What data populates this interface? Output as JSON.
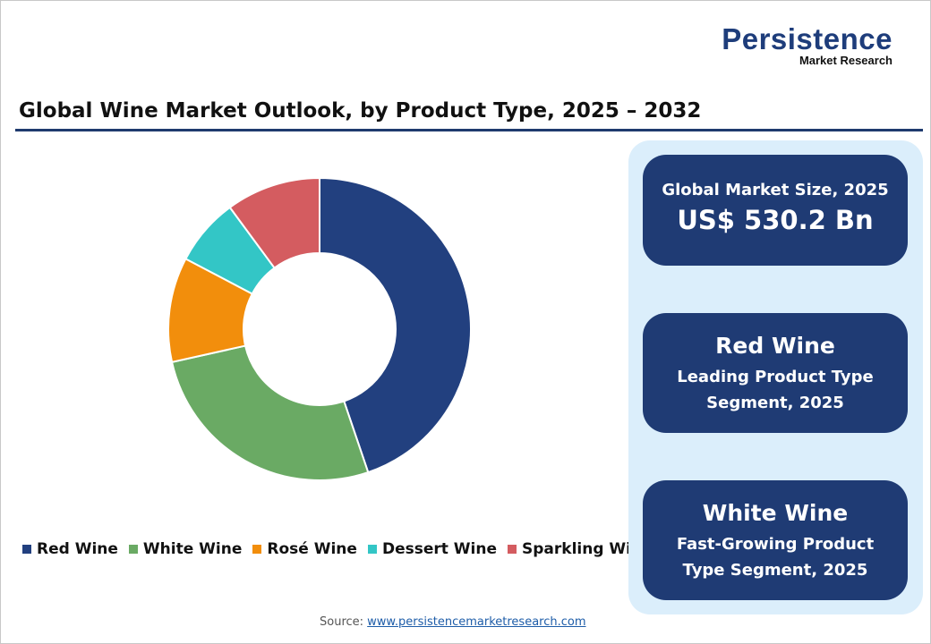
{
  "logo": {
    "name": "Persistence",
    "tagline": "Market Research"
  },
  "title": "Global Wine Market Outlook, by Product Type, 2025 – 2032",
  "chart_data": {
    "type": "pie",
    "variant": "donut",
    "title": "Global Wine Market Outlook, by Product Type, 2025 – 2032",
    "categories": [
      "Red Wine",
      "White Wine",
      "Rosé Wine",
      "Dessert Wine",
      "Sparkling Wine"
    ],
    "values": [
      44.8,
      26.7,
      11.2,
      7.2,
      10.1
    ],
    "unit": "% share (estimated)",
    "colors": [
      "#22407f",
      "#6aaa64",
      "#f28e0c",
      "#33c6c6",
      "#d45c60"
    ],
    "legend_position": "bottom"
  },
  "source": {
    "label": "Source:",
    "link": "www.persistencemarketresearch.com"
  },
  "cards": [
    {
      "line1": "Global Market Size, 2025",
      "line2": "US$ 530.2 Bn"
    },
    {
      "line1": "Red Wine",
      "line2": "Leading Product Type",
      "line3": "Segment, 2025"
    },
    {
      "line1": "White Wine",
      "line2": "Fast-Growing Product",
      "line3": "Type Segment, 2025"
    }
  ]
}
